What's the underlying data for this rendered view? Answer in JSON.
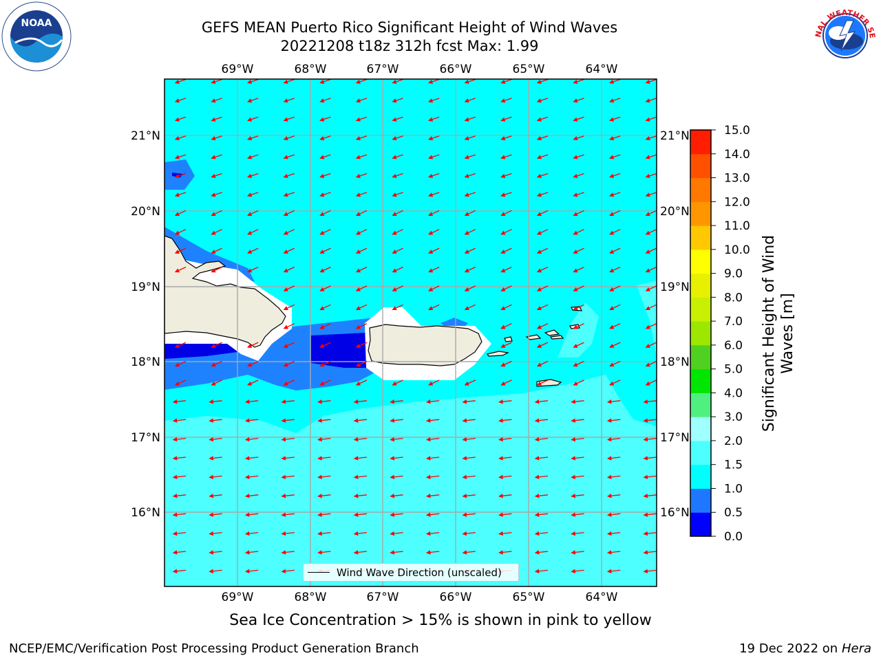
{
  "header": {
    "title_line1": "GEFS MEAN Puerto Rico Significant Height of Wind Waves",
    "title_line2": "20221208 t18z 312h fcst   Max: 1.99"
  },
  "logos": {
    "left": "noaa-logo",
    "left_text": "NOAA",
    "right": "national-weather-service-logo",
    "right_text": "NATIONAL WEATHER SERVICE"
  },
  "map": {
    "lon_labels": [
      "69°W",
      "68°W",
      "67°W",
      "66°W",
      "65°W",
      "64°W"
    ],
    "lat_labels": [
      "21°N",
      "20°N",
      "19°N",
      "18°N",
      "17°N",
      "16°N"
    ],
    "legend_label": "Wind Wave Direction (unscaled)",
    "colors": {
      "ocean_main": "#00ffff",
      "ocean_light": "#4dffff",
      "wave_mid": "#1e82ff",
      "wave_low": "#0000e6",
      "land": "#efedde",
      "arrows": "#ff0000"
    }
  },
  "colorbar": {
    "label": "Significant Height of Wind Waves [m]",
    "label_line1": "Significant Height of Wind",
    "label_line2": "Waves [m]",
    "ticks": [
      "0.0",
      "0.5",
      "1.0",
      "1.5",
      "2.0",
      "3.0",
      "4.0",
      "5.0",
      "6.0",
      "7.0",
      "8.0",
      "9.0",
      "10.0",
      "11.0",
      "12.0",
      "13.0",
      "14.0",
      "15.0"
    ],
    "colors": [
      "#0000ff",
      "#1e78ff",
      "#00ffff",
      "#4dffff",
      "#a0ffff",
      "#50f080",
      "#00e600",
      "#50d020",
      "#9ce600",
      "#c8f000",
      "#e6f000",
      "#ffff00",
      "#ffc800",
      "#ff9600",
      "#ff7800",
      "#ff5000",
      "#ff1e00"
    ]
  },
  "footer": {
    "subtitle": "Sea Ice Concentration > 15% is shown in pink to yellow",
    "left": "NCEP/EMC/Verification Post Processing Product Generation Branch",
    "right_date": "19 Dec 2022 on",
    "right_host": "Hera"
  }
}
